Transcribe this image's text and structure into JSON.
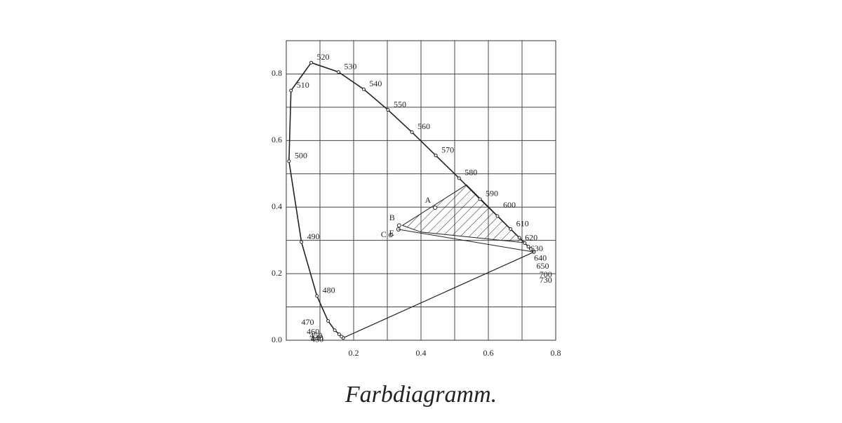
{
  "chart_data": {
    "type": "line",
    "caption": "Farbdiagramm.",
    "xlim": [
      0,
      0.8
    ],
    "ylim": [
      0,
      0.9
    ],
    "xticks": [
      0.2,
      0.4,
      0.6,
      0.8
    ],
    "yticks": [
      {
        "value": 0,
        "label": "0.0"
      },
      0.2,
      0.4,
      0.6,
      0.8
    ],
    "xgrid": [
      0.1,
      0.2,
      0.3,
      0.4,
      0.5,
      0.6,
      0.7
    ],
    "ygrid": [
      0.1,
      0.2,
      0.3,
      0.4,
      0.5,
      0.6,
      0.7,
      0.8
    ],
    "color": "#222",
    "series": [
      {
        "wavelengths": [
          430,
          440,
          450,
          460,
          470,
          480,
          490,
          500,
          510,
          520,
          530,
          540,
          550,
          560,
          570,
          580,
          590,
          600,
          610,
          620,
          630,
          640,
          650,
          700,
          730
        ],
        "x": [
          0.169,
          0.164,
          0.157,
          0.144,
          0.124,
          0.091,
          0.045,
          0.008,
          0.014,
          0.074,
          0.155,
          0.23,
          0.302,
          0.373,
          0.444,
          0.513,
          0.575,
          0.627,
          0.666,
          0.692,
          0.708,
          0.719,
          0.726,
          0.735,
          0.735
        ],
        "values": [
          0.007,
          0.011,
          0.018,
          0.03,
          0.058,
          0.133,
          0.295,
          0.538,
          0.75,
          0.834,
          0.806,
          0.754,
          0.692,
          0.625,
          0.555,
          0.487,
          0.424,
          0.373,
          0.334,
          0.308,
          0.292,
          0.281,
          0.274,
          0.265,
          0.265
        ]
      }
    ],
    "points": [
      {
        "label": "A",
        "x": 0.442,
        "y": 0.398
      },
      {
        "label": "B",
        "x": 0.335,
        "y": 0.345
      },
      {
        "label": "C",
        "x": 0.31,
        "y": 0.316
      },
      {
        "label": "E",
        "x": 0.333,
        "y": 0.333
      }
    ],
    "hatched_region": {
      "x": [
        0.345,
        0.535,
        0.707,
        0.4
      ],
      "y": [
        0.345,
        0.467,
        0.293,
        0.325
      ]
    }
  }
}
